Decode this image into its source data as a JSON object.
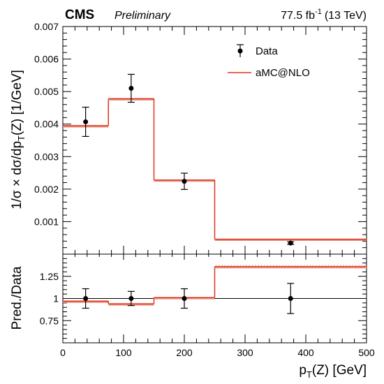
{
  "header": {
    "experiment": "CMS",
    "status": "Preliminary",
    "lumi_value": "77.5 fb",
    "lumi_exp": "-1",
    "lumi_energy": "(13 TeV)"
  },
  "colors": {
    "data": "#000000",
    "prediction": "#e0331f",
    "prediction_band": "#e58f7a"
  },
  "chart_data": [
    {
      "type": "histogram",
      "panel": "main",
      "xlim": [
        0,
        500
      ],
      "ylim": [
        0,
        0.007
      ],
      "yticks": [
        "0.001",
        "0.002",
        "0.003",
        "0.004",
        "0.005",
        "0.006",
        "0.007"
      ],
      "ylabel": {
        "pre": "1/σ × dσ/dp",
        "sub": "T",
        "post": "(Z) [1/GeV]"
      },
      "bin_edges": [
        0,
        75,
        150,
        250,
        500
      ],
      "series": [
        {
          "name": "Data",
          "style": "points",
          "x": [
            37.5,
            112.5,
            200,
            375
          ],
          "y": [
            0.00407,
            0.0051,
            0.00224,
            0.00034
          ],
          "yerr": [
            0.00045,
            0.00043,
            0.00025,
            4e-05
          ]
        },
        {
          "name": "aMC@NLO",
          "style": "step",
          "values": [
            0.00395,
            0.00478,
            0.00228,
            0.00046
          ]
        }
      ],
      "legend": {
        "placement": "top-right",
        "entries": [
          "Data",
          "aMC@NLO"
        ]
      }
    },
    {
      "type": "histogram",
      "panel": "ratio",
      "xlim": [
        0,
        500
      ],
      "ylim": [
        0.5,
        1.5
      ],
      "yticks": [
        "0.75",
        "1",
        "1.25"
      ],
      "xticks": [
        "0",
        "100",
        "200",
        "300",
        "400",
        "500"
      ],
      "ylabel": "Pred./Data",
      "xlabel": {
        "pre": "p",
        "sub": "T",
        "post": "(Z) [GeV]"
      },
      "reference_line": 1,
      "bin_edges": [
        0,
        75,
        150,
        250,
        500
      ],
      "series": [
        {
          "name": "Data",
          "style": "points",
          "x": [
            37.5,
            112.5,
            200,
            375
          ],
          "y": [
            1,
            1,
            1,
            1
          ],
          "yerr": [
            0.11,
            0.08,
            0.11,
            0.17
          ]
        },
        {
          "name": "aMC@NLO",
          "style": "step",
          "values": [
            0.97,
            0.94,
            1.01,
            1.36
          ]
        }
      ]
    }
  ]
}
